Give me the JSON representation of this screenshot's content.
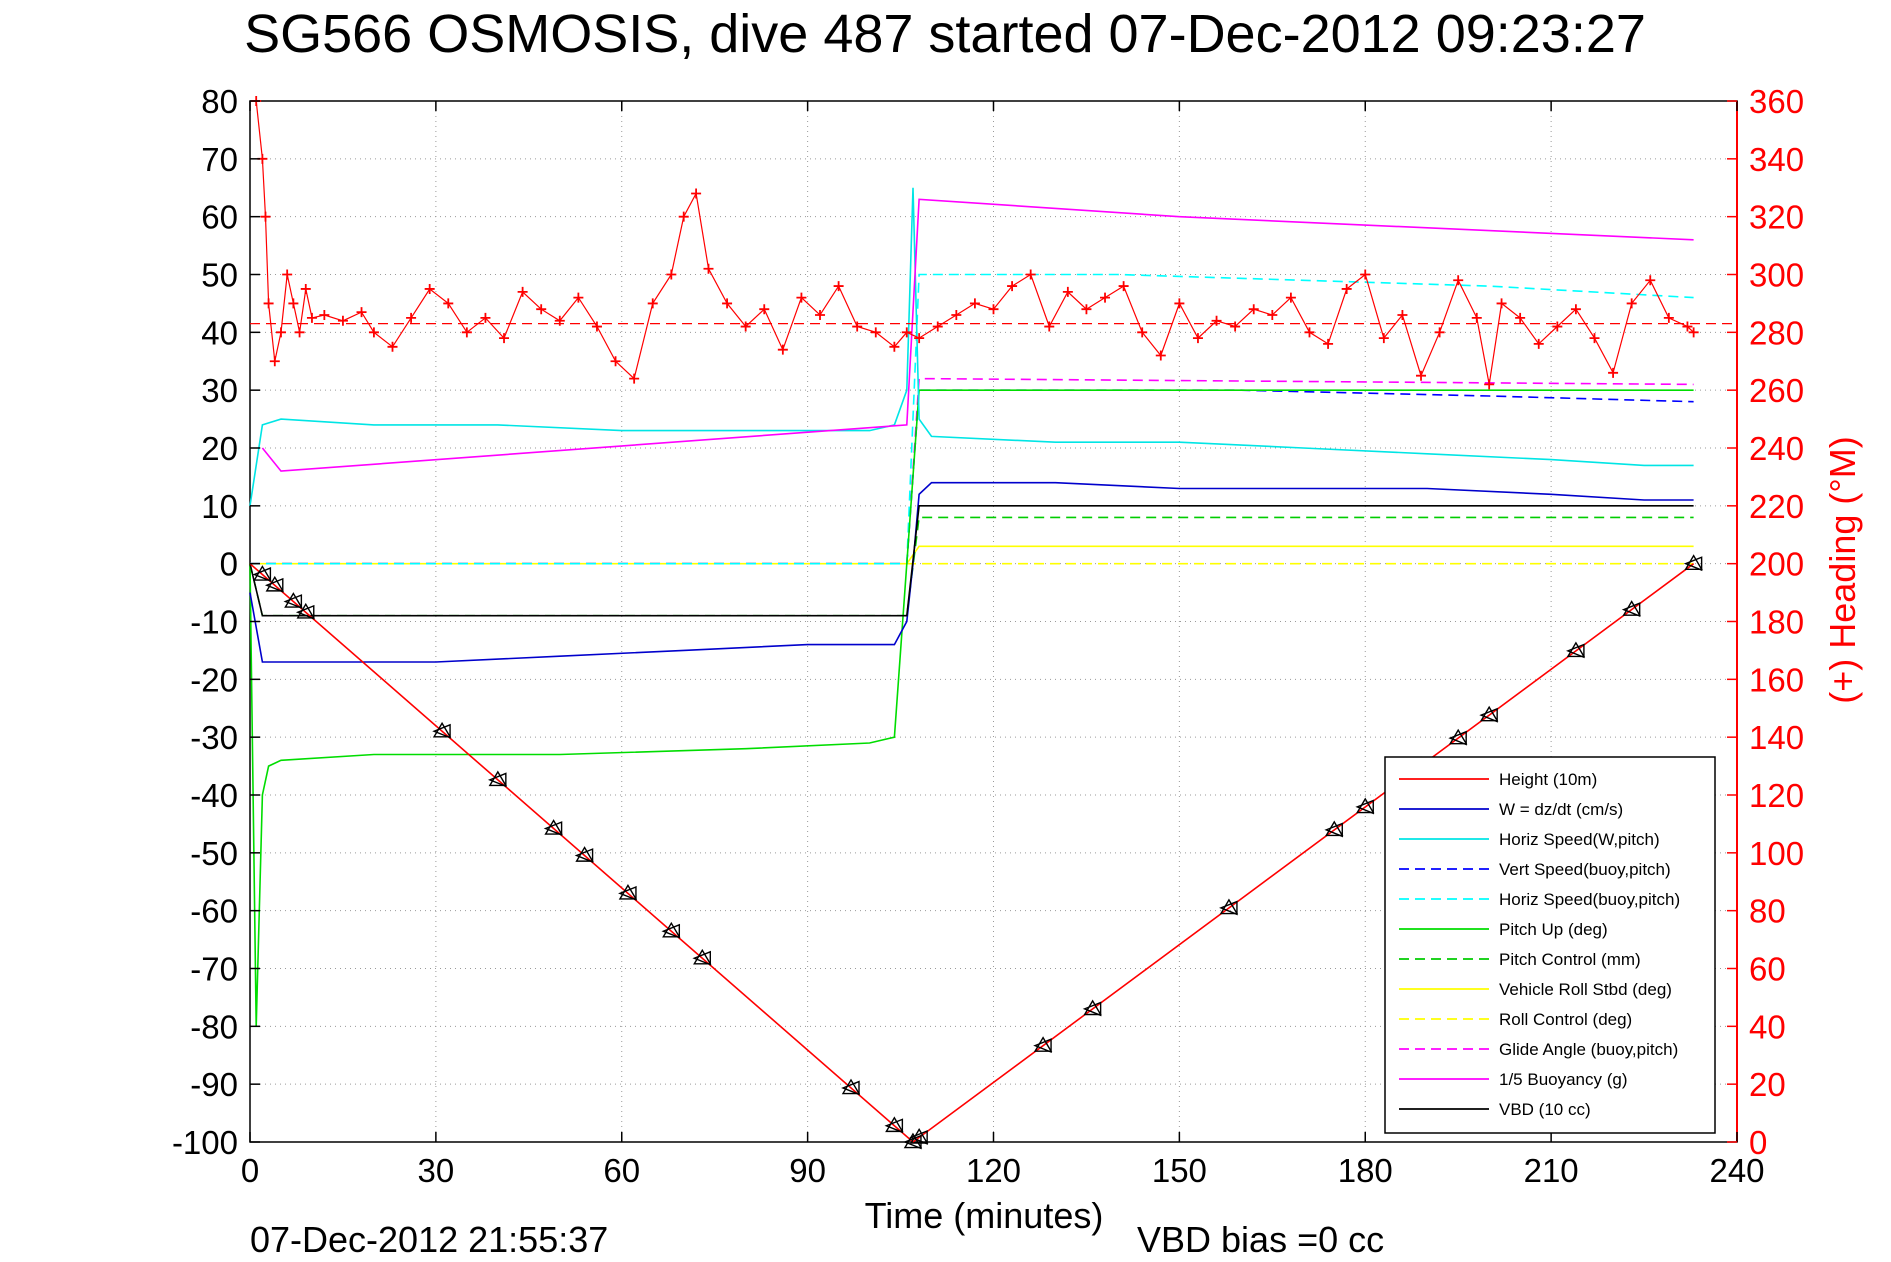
{
  "chart_data": {
    "type": "line",
    "title": "SG566 OSMOSIS, dive 487 started 07-Dec-2012 09:23:27",
    "xlabel": "Time (minutes)",
    "ylabel_right": "(+) Heading (°M)",
    "footer_left": "07-Dec-2012 21:55:37",
    "footer_right": "VBD bias =0 cc",
    "xlim": [
      0,
      240
    ],
    "ylim": [
      -100,
      80
    ],
    "y2lim": [
      0,
      360
    ],
    "xticks": [
      0,
      30,
      60,
      90,
      120,
      150,
      180,
      210,
      240
    ],
    "yticks": [
      80,
      70,
      60,
      50,
      40,
      30,
      20,
      10,
      0,
      -10,
      -20,
      -30,
      -40,
      -50,
      -60,
      -70,
      -80,
      -90,
      -100
    ],
    "y2ticks": [
      360,
      340,
      320,
      300,
      280,
      260,
      240,
      220,
      200,
      180,
      160,
      140,
      120,
      100,
      80,
      60,
      40,
      20,
      0
    ],
    "grid": true,
    "legend_position": "lower-right",
    "series": [
      {
        "name": "Height (10m)",
        "color": "#ff0000",
        "style": "solid",
        "x": [
          0,
          107,
          233
        ],
        "y": [
          0,
          -100,
          0
        ]
      },
      {
        "name": "W = dz/dt (cm/s)",
        "color": "#0000cc",
        "style": "solid",
        "x": [
          0,
          2,
          5,
          15,
          30,
          50,
          70,
          90,
          104,
          106,
          107,
          108,
          110,
          130,
          150,
          170,
          190,
          210,
          225,
          233
        ],
        "y": [
          -5,
          -17,
          -17,
          -17,
          -17,
          -16,
          -15,
          -14,
          -14,
          -10,
          0,
          12,
          14,
          14,
          13,
          13,
          13,
          12,
          11,
          11
        ]
      },
      {
        "name": "Horiz Speed(W,pitch)",
        "color": "#00e5e5",
        "style": "solid",
        "x": [
          0,
          2,
          5,
          20,
          40,
          60,
          80,
          100,
          104,
          106,
          107,
          108,
          110,
          130,
          150,
          170,
          190,
          210,
          225,
          233
        ],
        "y": [
          10,
          24,
          25,
          24,
          24,
          23,
          23,
          23,
          24,
          30,
          65,
          25,
          22,
          21,
          21,
          20,
          19,
          18,
          17,
          17
        ]
      },
      {
        "name": "Vert Speed(buoy,pitch)",
        "color": "#0000ff",
        "style": "dashed",
        "x": [
          0,
          1,
          2,
          104,
          106,
          108,
          120,
          160,
          200,
          233
        ],
        "y": [
          0,
          0,
          0,
          0,
          0,
          30,
          30,
          30,
          29,
          28
        ]
      },
      {
        "name": "Horiz Speed(buoy,pitch)",
        "color": "#00ffff",
        "style": "dashed",
        "x": [
          0,
          1,
          2,
          104,
          106,
          108,
          140,
          170,
          200,
          233
        ],
        "y": [
          0,
          0,
          0,
          0,
          0,
          50,
          50,
          49,
          48,
          46
        ]
      },
      {
        "name": "Pitch Up (deg)",
        "color": "#00dd00",
        "style": "solid",
        "x": [
          0,
          1,
          2,
          3,
          5,
          20,
          50,
          80,
          100,
          104,
          106,
          108,
          120,
          160,
          200,
          233
        ],
        "y": [
          0,
          -80,
          -40,
          -35,
          -34,
          -33,
          -33,
          -32,
          -31,
          -30,
          0,
          30,
          30,
          30,
          30,
          30
        ]
      },
      {
        "name": "Pitch Control (mm)",
        "color": "#00cc00",
        "style": "dashed",
        "x": [
          0,
          2,
          106,
          108,
          110,
          233
        ],
        "y": [
          0,
          -9,
          -9,
          8,
          8,
          8
        ]
      },
      {
        "name": "Vehicle Roll Stbd (deg)",
        "color": "#ffff00",
        "style": "solid",
        "x": [
          0,
          3,
          30,
          60,
          90,
          104,
          106,
          108,
          130,
          160,
          190,
          210,
          233
        ],
        "y": [
          0,
          0,
          0,
          0,
          0,
          0,
          0,
          3,
          3,
          3,
          3,
          3,
          3
        ]
      },
      {
        "name": "Roll Control (deg)",
        "color": "#ffff00",
        "style": "dashed",
        "x": [
          0,
          233
        ],
        "y": [
          0,
          0
        ]
      },
      {
        "name": "Glide Angle (buoy,pitch)",
        "color": "#ff00ff",
        "style": "dashed",
        "x": [
          0,
          106,
          108,
          233
        ],
        "y": [
          0,
          0,
          32,
          31
        ]
      },
      {
        "name": "1/5 Buoyancy (g)",
        "color": "#ff00ff",
        "style": "solid",
        "x": [
          2,
          5,
          106,
          108,
          150,
          233
        ],
        "y": [
          20,
          16,
          24,
          63,
          60,
          56
        ]
      },
      {
        "name": "VBD (10 cc)",
        "color": "#000000",
        "style": "solid",
        "x": [
          0,
          2,
          106,
          108,
          233
        ],
        "y": [
          0,
          -9,
          -9,
          10,
          10
        ]
      }
    ],
    "heading": {
      "color": "#ff0000",
      "marker": "+",
      "axis": "right",
      "reference": 283,
      "x": [
        1,
        2,
        2.5,
        3,
        4,
        5,
        6,
        7,
        8,
        9,
        10,
        12,
        15,
        18,
        20,
        23,
        26,
        29,
        32,
        35,
        38,
        41,
        44,
        47,
        50,
        53,
        56,
        59,
        62,
        65,
        68,
        70,
        72,
        74,
        77,
        80,
        83,
        86,
        89,
        92,
        95,
        98,
        101,
        104,
        106,
        108,
        111,
        114,
        117,
        120,
        123,
        126,
        129,
        132,
        135,
        138,
        141,
        144,
        147,
        150,
        153,
        156,
        159,
        162,
        165,
        168,
        171,
        174,
        177,
        180,
        183,
        186,
        189,
        192,
        195,
        198,
        200,
        202,
        205,
        208,
        211,
        214,
        217,
        220,
        223,
        226,
        229,
        232,
        233
      ],
      "y": [
        360,
        340,
        320,
        290,
        270,
        280,
        300,
        290,
        280,
        295,
        285,
        286,
        284,
        287,
        280,
        275,
        285,
        295,
        290,
        280,
        285,
        278,
        294,
        288,
        284,
        292,
        282,
        270,
        264,
        290,
        300,
        320,
        328,
        302,
        290,
        282,
        288,
        274,
        292,
        286,
        296,
        282,
        280,
        275,
        280,
        278,
        282,
        286,
        290,
        288,
        296,
        300,
        282,
        294,
        288,
        292,
        296,
        280,
        272,
        290,
        278,
        284,
        282,
        288,
        286,
        292,
        280,
        276,
        295,
        300,
        278,
        286,
        265,
        280,
        298,
        285,
        262,
        290,
        285,
        276,
        282,
        288,
        278,
        266,
        290,
        298,
        285,
        282,
        280
      ]
    },
    "vbd_markers": {
      "color": "#000000",
      "x": [
        2,
        4,
        7,
        9,
        31,
        40,
        49,
        54,
        61,
        68,
        73,
        97,
        104,
        107,
        108,
        128,
        136,
        158,
        175,
        180,
        189,
        195,
        200,
        214,
        223,
        233
      ]
    }
  }
}
